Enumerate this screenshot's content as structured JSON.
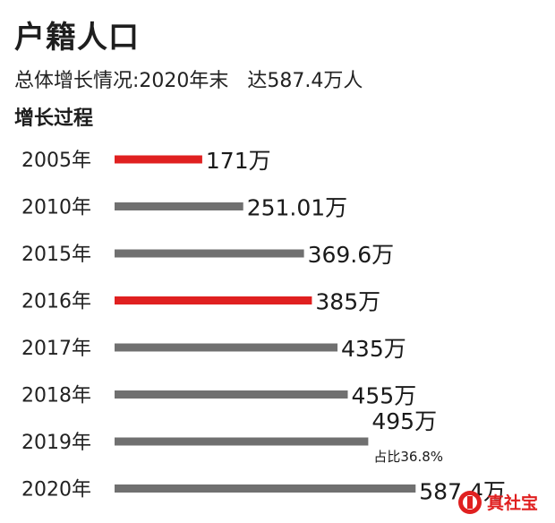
{
  "header": {
    "title": "户籍人口",
    "summary": "总体增长情况:2020年末   达587.4万人",
    "section": "增长过程"
  },
  "chart_data": {
    "type": "bar",
    "orientation": "horizontal",
    "categories": [
      "2005年",
      "2010年",
      "2015年",
      "2016年",
      "2017年",
      "2018年",
      "2019年",
      "2020年"
    ],
    "values": [
      171,
      251.01,
      369.6,
      385,
      435,
      455,
      495,
      587.4
    ],
    "value_labels": [
      "171万",
      "251.01万",
      "369.6万",
      "385万",
      "435万",
      "455万",
      "495万",
      "587.4万"
    ],
    "highlight": [
      true,
      false,
      false,
      true,
      false,
      false,
      false,
      false
    ],
    "annotations": [
      {
        "category": "2019年",
        "text": "占比36.8%"
      }
    ],
    "colors": {
      "default": "#707070",
      "highlight": "#e02020"
    },
    "grid": false,
    "xlim": [
      0,
      600
    ]
  },
  "watermark": {
    "text": "真社宝",
    "color": "#e02020"
  }
}
